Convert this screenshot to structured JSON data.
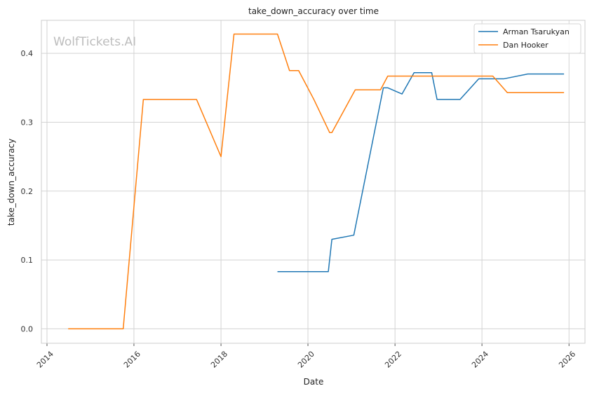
{
  "chart_data": {
    "type": "line",
    "title": "take_down_accuracy over time",
    "xlabel": "Date",
    "ylabel": "take_down_accuracy",
    "watermark": "WolfTickets.AI",
    "x_ticks": [
      "2014",
      "2016",
      "2018",
      "2020",
      "2022",
      "2024",
      "2026"
    ],
    "y_ticks": [
      "0.0",
      "0.1",
      "0.2",
      "0.3",
      "0.4"
    ],
    "xlim": [
      "2013-11-15",
      "2026-05-15"
    ],
    "ylim": [
      -0.021,
      0.448
    ],
    "grid": true,
    "legend": "top-right",
    "series": [
      {
        "name": "Arman Tsarukyan",
        "color": "#1f77b4",
        "points": [
          [
            "2019-04-20",
            0.083
          ],
          [
            "2020-06-20",
            0.083
          ],
          [
            "2020-07-20",
            0.13
          ],
          [
            "2021-01-20",
            0.136
          ],
          [
            "2021-09-25",
            0.35
          ],
          [
            "2021-11-01",
            0.35
          ],
          [
            "2022-03-01",
            0.341
          ],
          [
            "2022-06-10",
            0.372
          ],
          [
            "2022-11-05",
            0.372
          ],
          [
            "2022-12-20",
            0.333
          ],
          [
            "2023-07-01",
            0.333
          ],
          [
            "2023-12-05",
            0.363
          ],
          [
            "2024-07-01",
            0.363
          ],
          [
            "2025-01-20",
            0.37
          ],
          [
            "2025-11-20",
            0.37
          ]
        ]
      },
      {
        "name": "Dan Hooker",
        "color": "#ff7f0e",
        "points": [
          [
            "2014-06-28",
            0.0
          ],
          [
            "2015-10-03",
            0.0
          ],
          [
            "2016-03-20",
            0.333
          ],
          [
            "2017-06-10",
            0.333
          ],
          [
            "2018-01-01",
            0.25
          ],
          [
            "2018-04-20",
            0.428
          ],
          [
            "2019-04-20",
            0.428
          ],
          [
            "2019-07-30",
            0.375
          ],
          [
            "2019-10-15",
            0.375
          ],
          [
            "2020-02-20",
            0.333
          ],
          [
            "2020-07-01",
            0.285
          ],
          [
            "2020-07-20",
            0.285
          ],
          [
            "2021-02-01",
            0.347
          ],
          [
            "2021-09-01",
            0.347
          ],
          [
            "2021-11-01",
            0.367
          ],
          [
            "2024-04-01",
            0.367
          ],
          [
            "2024-08-01",
            0.343
          ],
          [
            "2025-11-20",
            0.343
          ]
        ]
      }
    ]
  }
}
